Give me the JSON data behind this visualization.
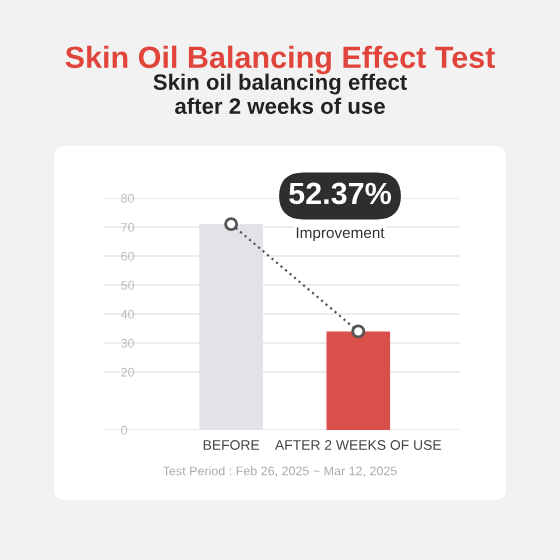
{
  "chart_data": {
    "type": "bar",
    "title": "Skin Oil Balancing Effect Test",
    "subtitle": "Skin oil balancing effect\nafter 2 weeks of use",
    "categories": [
      "BEFORE",
      "AFTER 2 WEEKS OF USE"
    ],
    "series": [
      {
        "colors": [
          "#e1e3e8",
          "#d9504a"
        ],
        "values": [
          71,
          34
        ]
      },
      {
        "type": "line",
        "color": "#555555",
        "marker": "circle",
        "line_style": "dotted",
        "values": [
          71,
          34
        ]
      }
    ],
    "ylim": [
      0,
      80
    ],
    "yticks": [
      0,
      20,
      30,
      40,
      50,
      60,
      70,
      80
    ],
    "grid": "y",
    "annotations": [
      "52.37%",
      "Improvement",
      "Test Period : Feb 26, 2025 ~ Mar 12, 2025"
    ]
  }
}
